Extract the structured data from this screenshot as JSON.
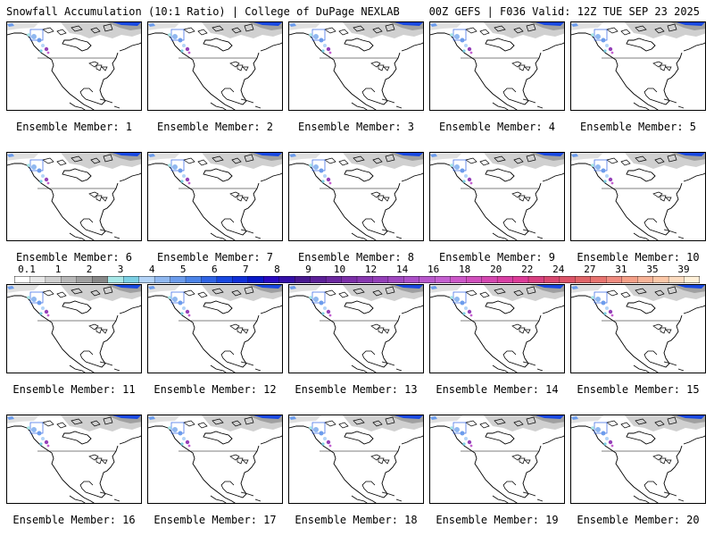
{
  "header": {
    "left": "Snowfall Accumulation (10:1 Ratio) | College of DuPage NEXLAB",
    "right": "00Z GEFS | F036 Valid: 12Z TUE SEP 23 2025"
  },
  "map": {
    "caption_prefix": "Ensemble Member: ",
    "members": [
      "1",
      "2",
      "3",
      "4",
      "5",
      "6",
      "7",
      "8",
      "9",
      "10",
      "11",
      "12",
      "13",
      "14",
      "15",
      "16",
      "17",
      "18",
      "19",
      "20"
    ],
    "layers": [
      "coastline",
      "state-borders",
      "canada-us-border",
      "greenland-ice-shading",
      "snowfall-shading"
    ]
  },
  "legend": {
    "labels": [
      "0.1",
      "1",
      "2",
      "3",
      "4",
      "5",
      "6",
      "7",
      "8",
      "9",
      "10",
      "12",
      "14",
      "16",
      "18",
      "20",
      "22",
      "24",
      "27",
      "31",
      "35",
      "39"
    ],
    "colors": [
      "#ffffff",
      "#e8e8e8",
      "#d0d0d0",
      "#b8b8b8",
      "#a0a0a0",
      "#888888",
      "#a8e8e8",
      "#7cd0e4",
      "#b4d4f8",
      "#90b8f0",
      "#6c9cec",
      "#4c84e8",
      "#3064e4",
      "#1848e0",
      "#1030d8",
      "#0818c8",
      "#2808c0",
      "#3410a8",
      "#481890",
      "#5c2098",
      "#6c28a0",
      "#7c30a8",
      "#8838b0",
      "#9440b8",
      "#a048c0",
      "#ac50c8",
      "#b858cc",
      "#c460d0",
      "#cc58c8",
      "#d050bc",
      "#d448b0",
      "#d840a4",
      "#dc3c98",
      "#d84080",
      "#d84870",
      "#dc5468",
      "#e06468",
      "#e87470",
      "#f08c80",
      "#f4a088",
      "#f8b498",
      "#fcc8a8",
      "#fcdcc0",
      "#fff0d8"
    ]
  }
}
